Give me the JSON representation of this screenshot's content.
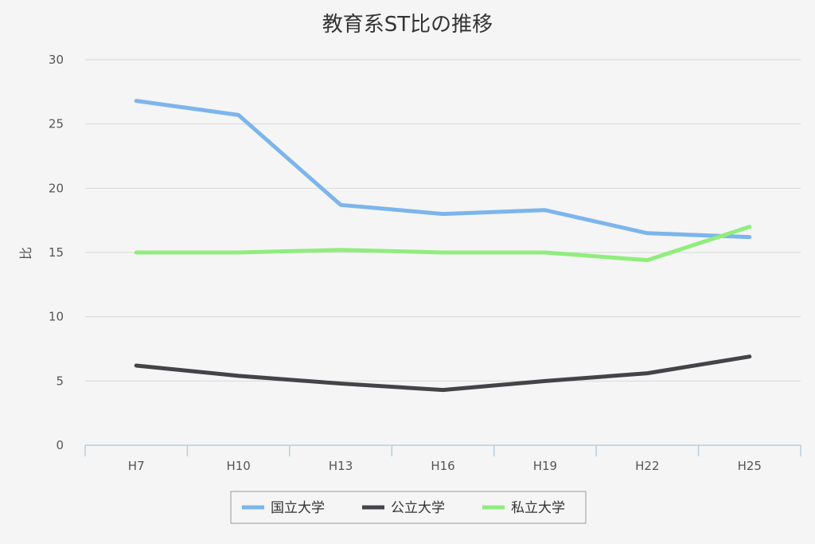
{
  "chart_data": {
    "type": "line",
    "title": "教育系ST比の推移",
    "xlabel": "",
    "ylabel": "比",
    "categories": [
      "H7",
      "H10",
      "H13",
      "H16",
      "H19",
      "H22",
      "H25"
    ],
    "ylim": [
      0,
      30
    ],
    "yticks": [
      0,
      5,
      10,
      15,
      20,
      25,
      30
    ],
    "grid": true,
    "legend_position": "bottom",
    "series": [
      {
        "name": "国立大学",
        "color": "#7cb5ec",
        "values": [
          26.8,
          25.7,
          18.7,
          18.0,
          18.3,
          16.5,
          16.2
        ]
      },
      {
        "name": "公立大学",
        "color": "#434348",
        "values": [
          6.2,
          5.4,
          4.8,
          4.3,
          5.0,
          5.6,
          6.9
        ]
      },
      {
        "name": "私立大学",
        "color": "#90ed7d",
        "values": [
          15.0,
          15.0,
          15.2,
          15.0,
          15.0,
          14.4,
          17.0
        ]
      }
    ]
  }
}
